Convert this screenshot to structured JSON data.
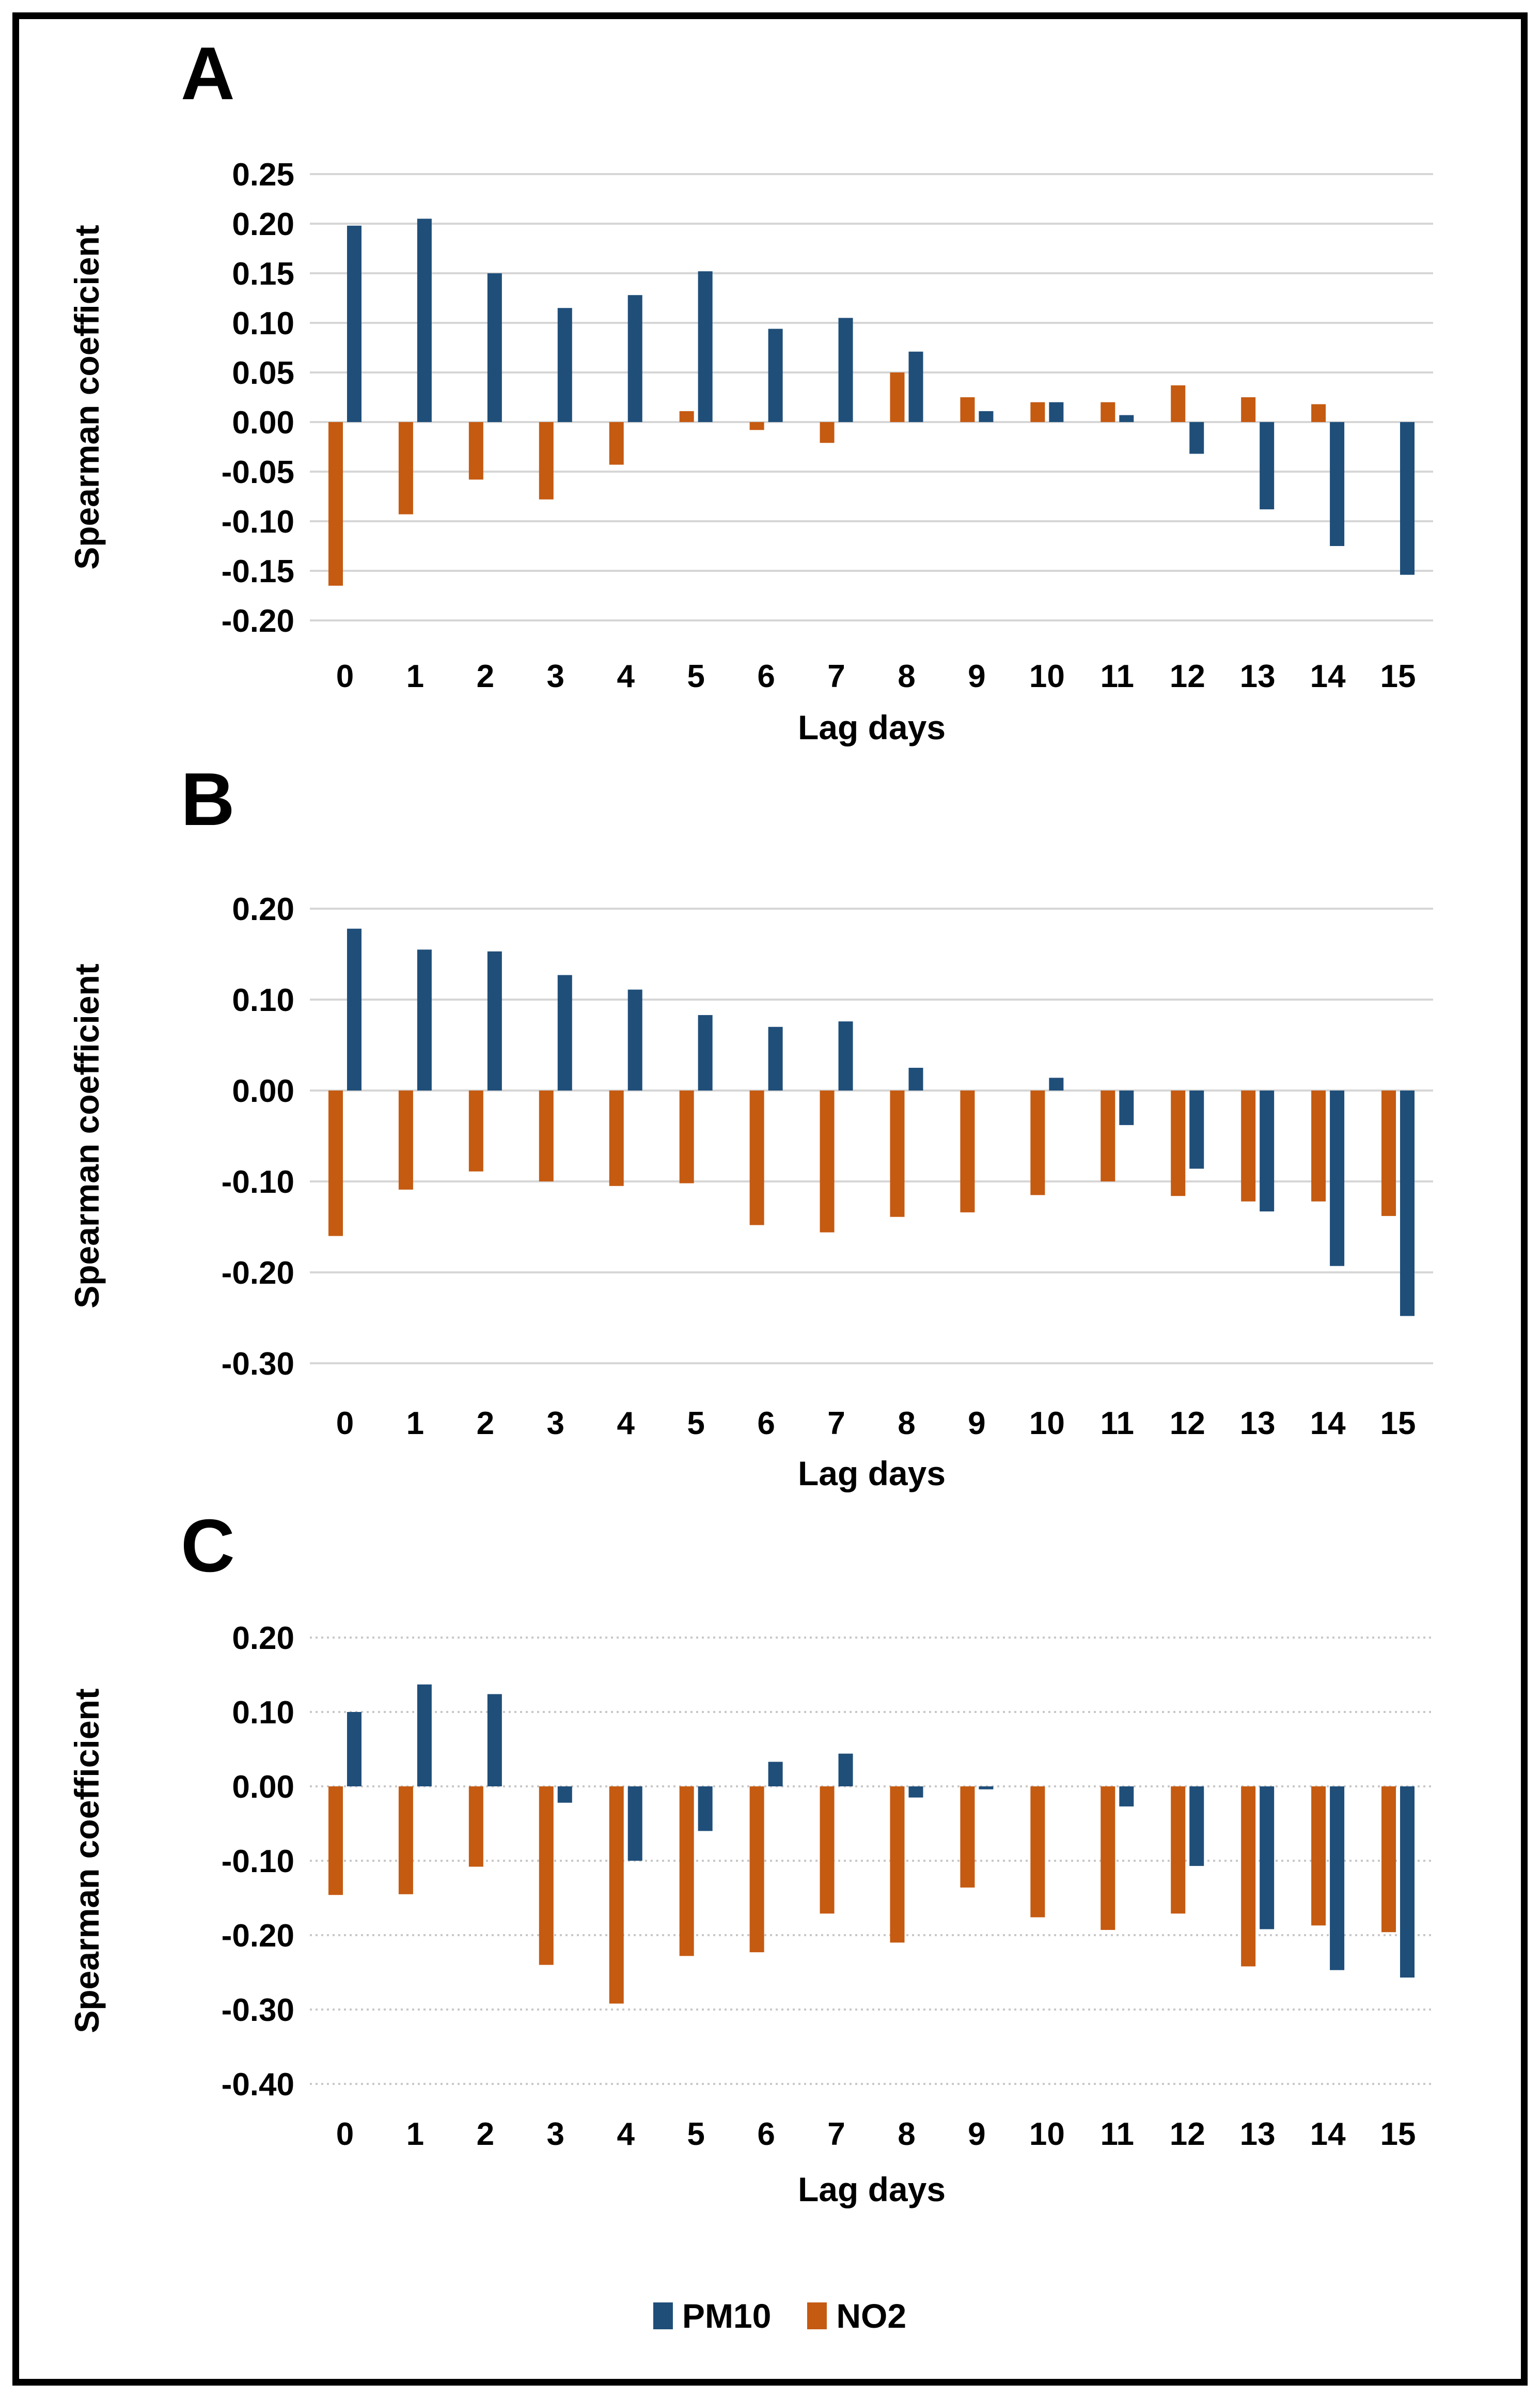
{
  "figure": {
    "background": "#ffffff",
    "border_color": "#000000",
    "panels": [
      "A",
      "B",
      "C"
    ]
  },
  "legend": {
    "position": "bottom-center",
    "items": [
      {
        "label": "PM10",
        "color": "#1F4E79"
      },
      {
        "label": "NO2",
        "color": "#C55A11"
      }
    ]
  },
  "chart_data": [
    {
      "panel": "A",
      "type": "bar",
      "title": "",
      "xlabel": "Lag days",
      "ylabel": "Spearman coefficient",
      "categories": [
        "0",
        "1",
        "2",
        "3",
        "4",
        "5",
        "6",
        "7",
        "8",
        "9",
        "10",
        "11",
        "12",
        "13",
        "14",
        "15"
      ],
      "ylim": [
        -0.2,
        0.25
      ],
      "ytick_step": 0.05,
      "ytick_labels": [
        "0.25",
        "0.20",
        "0.15",
        "0.10",
        "0.05",
        "0.00",
        "-0.05",
        "-0.10",
        "-0.15",
        "-0.20"
      ],
      "grid": "on",
      "grid_style": "solid",
      "bar_order_left_to_right": [
        "NO2",
        "PM10"
      ],
      "series": [
        {
          "name": "PM10",
          "color": "#1F4E79",
          "values": [
            0.198,
            0.205,
            0.15,
            0.115,
            0.128,
            0.152,
            0.094,
            0.105,
            0.071,
            0.011,
            0.02,
            0.007,
            -0.032,
            -0.088,
            -0.125,
            -0.154
          ]
        },
        {
          "name": "NO2",
          "color": "#C55A11",
          "values": [
            -0.165,
            -0.093,
            -0.058,
            -0.078,
            -0.043,
            0.011,
            -0.008,
            -0.021,
            0.05,
            0.025,
            0.02,
            0.02,
            0.037,
            0.025,
            0.018,
            0.0
          ]
        }
      ]
    },
    {
      "panel": "B",
      "type": "bar",
      "title": "",
      "xlabel": "Lag days",
      "ylabel": "Spearman coefficient",
      "categories": [
        "0",
        "1",
        "2",
        "3",
        "4",
        "5",
        "6",
        "7",
        "8",
        "9",
        "10",
        "11",
        "12",
        "13",
        "14",
        "15"
      ],
      "ylim": [
        -0.3,
        0.2
      ],
      "ytick_step": 0.1,
      "ytick_labels": [
        "0.20",
        "0.10",
        "0.00",
        "-0.10",
        "-0.20",
        "-0.30"
      ],
      "grid": "on",
      "grid_style": "solid",
      "bar_order_left_to_right": [
        "NO2",
        "PM10"
      ],
      "series": [
        {
          "name": "PM10",
          "color": "#1F4E79",
          "values": [
            0.178,
            0.155,
            0.153,
            0.127,
            0.111,
            0.083,
            0.07,
            0.076,
            0.025,
            0.0,
            0.014,
            -0.038,
            -0.086,
            -0.133,
            -0.193,
            -0.248
          ]
        },
        {
          "name": "NO2",
          "color": "#C55A11",
          "values": [
            -0.16,
            -0.109,
            -0.089,
            -0.1,
            -0.105,
            -0.102,
            -0.148,
            -0.156,
            -0.139,
            -0.134,
            -0.115,
            -0.1,
            -0.116,
            -0.122,
            -0.122,
            -0.138
          ]
        }
      ]
    },
    {
      "panel": "C",
      "type": "bar",
      "title": "",
      "xlabel": "Lag days",
      "ylabel": "Spearman coefficient",
      "categories": [
        "0",
        "1",
        "2",
        "3",
        "4",
        "5",
        "6",
        "7",
        "8",
        "9",
        "10",
        "11",
        "12",
        "13",
        "14",
        "15"
      ],
      "ylim": [
        -0.4,
        0.2
      ],
      "ytick_step": 0.1,
      "ytick_labels": [
        "0.20",
        "0.10",
        "0.00",
        "-0.10",
        "-0.20",
        "-0.30",
        "-0.40"
      ],
      "grid": "on",
      "grid_style": "dotted",
      "bar_order_left_to_right": [
        "NO2",
        "PM10"
      ],
      "series": [
        {
          "name": "PM10",
          "color": "#1F4E79",
          "values": [
            0.1,
            0.137,
            0.124,
            -0.022,
            -0.1,
            -0.06,
            0.033,
            0.044,
            -0.015,
            -0.004,
            0.0,
            -0.027,
            -0.107,
            -0.192,
            -0.247,
            -0.257
          ]
        },
        {
          "name": "NO2",
          "color": "#C55A11",
          "values": [
            -0.146,
            -0.145,
            -0.108,
            -0.24,
            -0.292,
            -0.228,
            -0.223,
            -0.171,
            -0.21,
            -0.136,
            -0.176,
            -0.193,
            -0.171,
            -0.242,
            -0.187,
            -0.196
          ]
        }
      ]
    }
  ]
}
